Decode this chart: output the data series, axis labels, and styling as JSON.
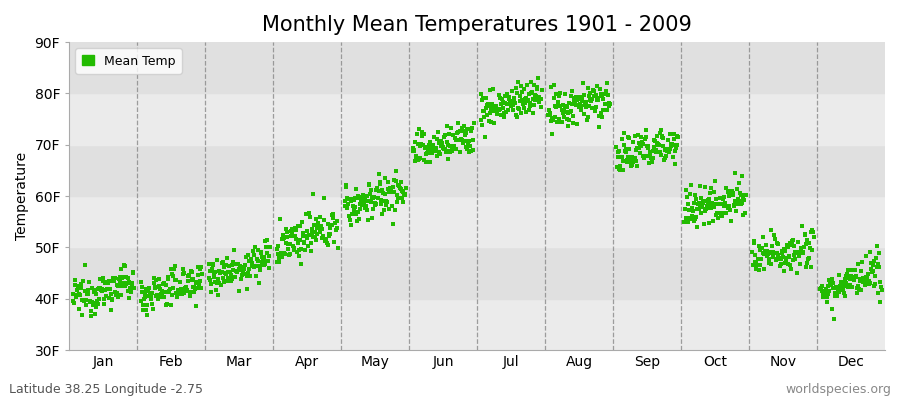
{
  "title": "Monthly Mean Temperatures 1901 - 2009",
  "ylabel": "Temperature",
  "xlabel_labels": [
    "Jan",
    "Feb",
    "Mar",
    "Apr",
    "May",
    "Jun",
    "Jul",
    "Aug",
    "Sep",
    "Oct",
    "Nov",
    "Dec"
  ],
  "ytick_labels": [
    "30F",
    "40F",
    "50F",
    "60F",
    "70F",
    "80F",
    "90F"
  ],
  "ytick_values": [
    30,
    40,
    50,
    60,
    70,
    80,
    90
  ],
  "ylim": [
    30,
    90
  ],
  "xlim": [
    0,
    12
  ],
  "dot_color": "#22bb00",
  "legend_label": "Mean Temp",
  "bottom_left_text": "Latitude 38.25 Longitude -2.75",
  "bottom_right_text": "worldspecies.org",
  "plot_bg_color": "#ebebeb",
  "alt_band_color": "#e0e0e0",
  "num_years": 109,
  "start_year": 1901,
  "monthly_means_F": [
    40.0,
    40.5,
    44.5,
    50.0,
    58.0,
    68.5,
    76.5,
    76.0,
    67.5,
    57.0,
    47.5,
    41.5
  ],
  "monthly_trend_per_year": [
    0.03,
    0.03,
    0.03,
    0.04,
    0.03,
    0.03,
    0.03,
    0.03,
    0.03,
    0.03,
    0.03,
    0.03
  ],
  "monthly_noise_std": [
    1.8,
    1.8,
    1.8,
    2.0,
    2.0,
    1.8,
    1.8,
    2.0,
    2.0,
    2.0,
    2.0,
    1.8
  ],
  "title_fontsize": 15,
  "axis_fontsize": 10,
  "tick_fontsize": 10,
  "legend_fontsize": 9,
  "annotation_fontsize": 9,
  "marker_size": 12
}
